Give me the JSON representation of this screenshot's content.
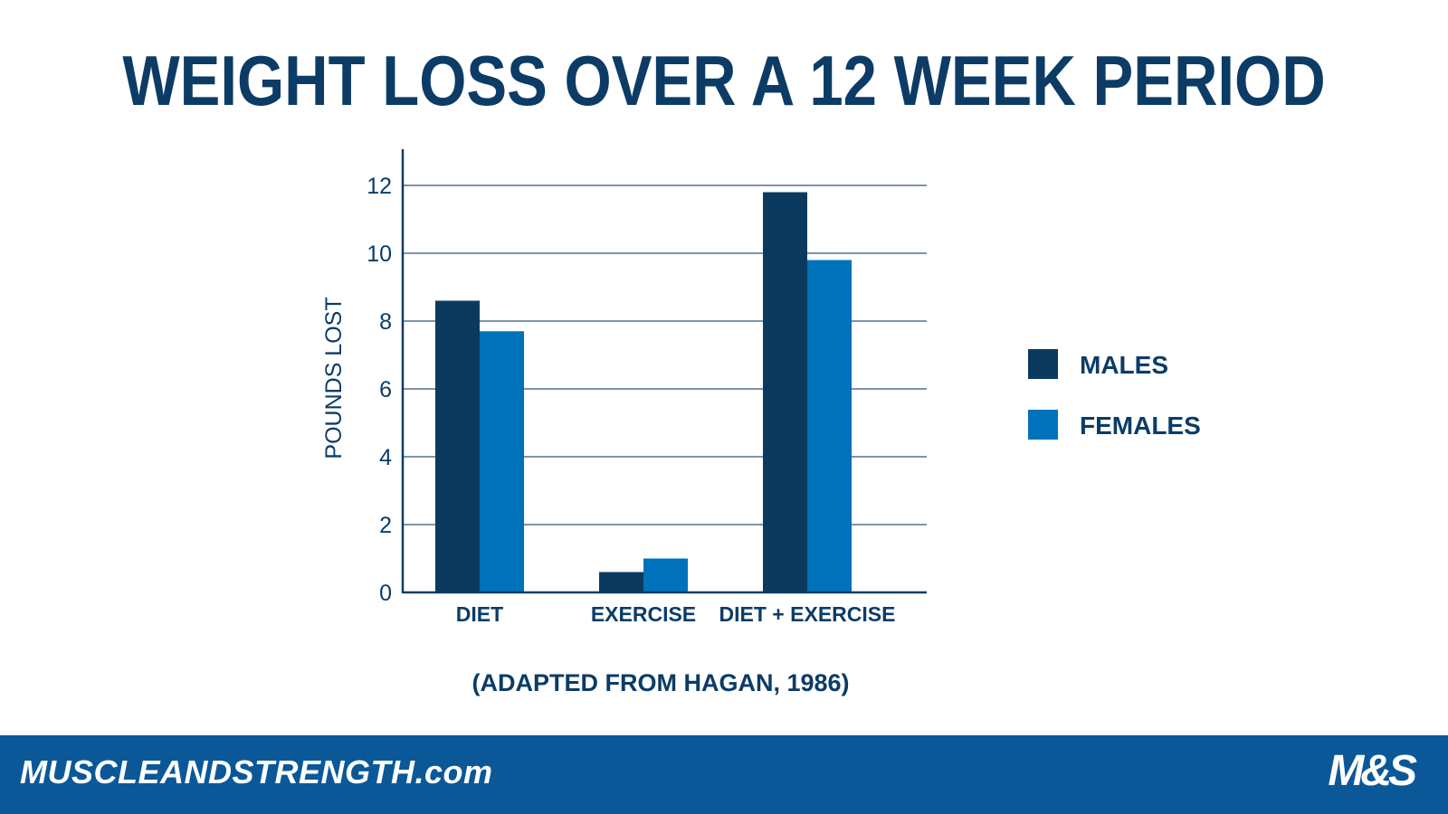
{
  "chart_data": {
    "type": "bar",
    "title": "WEIGHT LOSS OVER A 12 WEEK PERIOD",
    "ylabel": "POUNDS LOST",
    "xlabel": "",
    "categories": [
      "DIET",
      "EXERCISE",
      "DIET + EXERCISE"
    ],
    "series": [
      {
        "name": "MALES",
        "color": "#0c3a5f",
        "values": [
          8.6,
          0.6,
          11.8
        ]
      },
      {
        "name": "FEMALES",
        "color": "#0072bc",
        "values": [
          7.7,
          1.0,
          9.8
        ]
      }
    ],
    "ylim": [
      0,
      13
    ],
    "yticks": [
      0,
      2,
      4,
      6,
      8,
      10,
      12
    ],
    "grid": true,
    "legend_position": "right"
  },
  "source_note": "(ADAPTED FROM HAGAN, 1986)",
  "footer": {
    "site": "MUSCLEANDSTRENGTH.com",
    "logo": "M&S"
  }
}
